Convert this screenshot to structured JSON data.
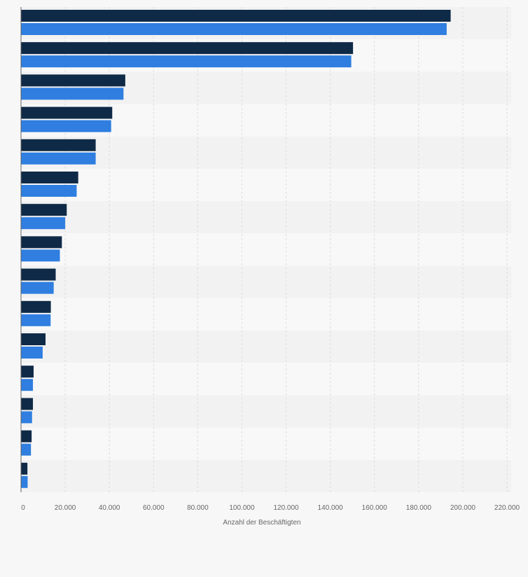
{
  "chart_data": {
    "type": "bar",
    "orientation": "horizontal",
    "categories": [
      "",
      "",
      "",
      "",
      "",
      "",
      "",
      "",
      "",
      "",
      "",
      "",
      "",
      "",
      ""
    ],
    "series": [
      {
        "color": "#0f2a47",
        "values": [
          194500,
          150300,
          47200,
          41300,
          33800,
          25900,
          20700,
          18500,
          15700,
          13500,
          11100,
          5700,
          5400,
          4800,
          2900
        ]
      },
      {
        "color": "#2f7ee0",
        "values": [
          192700,
          149500,
          46400,
          40800,
          33800,
          25200,
          20000,
          17600,
          14800,
          13400,
          9800,
          5400,
          5000,
          4500,
          3000
        ]
      }
    ],
    "xlim": [
      0,
      220000
    ],
    "xticks": [
      "0",
      "20.000",
      "40.000",
      "60.000",
      "80.000",
      "100.000",
      "120.000",
      "140.000",
      "160.000",
      "180.000",
      "200.000",
      "220.000"
    ],
    "xlabel": "Anzahl der Beschäftigten",
    "grid": true,
    "legend": "none"
  }
}
